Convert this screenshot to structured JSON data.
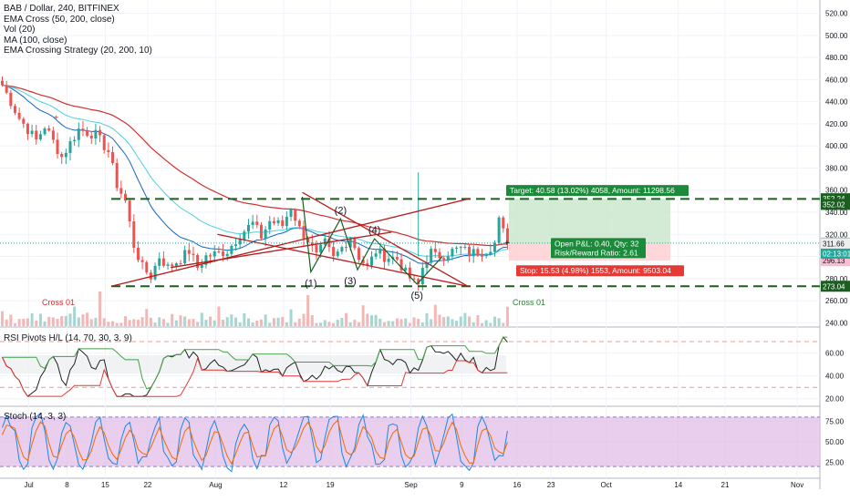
{
  "header": {
    "symbol": "BAB / Dollar, 240, BITFINEX",
    "studies": [
      "EMA Cross (50, 200, close)",
      "Vol (20)",
      "MA (100, close)",
      "EMA Crossing Strategy (20, 200, 10)"
    ]
  },
  "colors": {
    "up": "#26a69a",
    "down": "#ef5350",
    "ema_red": "#d32f2f",
    "ema_blue": "#1565c0",
    "ma_teal": "#4dd0e1",
    "pattern": "#b71c1c",
    "level": "#1b5e20",
    "target_bg": "#c8e6c9",
    "stop_bg": "#ffcdd2",
    "stoch_bg": "#e1bee7",
    "rsi_green": "#43a047",
    "rsi_red": "#e53935"
  },
  "chart_data": [
    {
      "type": "candlestick",
      "pane": "main",
      "ylim": [
        237,
        532
      ],
      "y_ticks": [
        240,
        260,
        280,
        300,
        320,
        340,
        360,
        380,
        400,
        420,
        440,
        460,
        480,
        500,
        520
      ],
      "x_tick_labels": [
        "Jul",
        "8",
        "15",
        "22",
        "Aug",
        "12",
        "19",
        "Sep",
        "9",
        "16",
        "23",
        "Oct",
        "14",
        "21",
        "Nov"
      ],
      "close_path": [
        [
          0,
          455
        ],
        [
          4,
          425
        ],
        [
          8,
          405
        ],
        [
          10,
          418
        ],
        [
          14,
          390
        ],
        [
          18,
          415
        ],
        [
          22,
          410
        ],
        [
          25,
          395
        ],
        [
          27,
          365
        ],
        [
          29,
          350
        ],
        [
          31,
          310
        ],
        [
          33,
          290
        ],
        [
          35,
          282
        ],
        [
          37,
          300
        ],
        [
          39,
          290
        ],
        [
          42,
          298
        ],
        [
          44,
          305
        ],
        [
          46,
          290
        ],
        [
          48,
          300
        ],
        [
          50,
          302
        ],
        [
          53,
          305
        ],
        [
          56,
          320
        ],
        [
          59,
          330
        ],
        [
          61,
          318
        ],
        [
          63,
          332
        ],
        [
          66,
          328
        ],
        [
          68,
          345
        ],
        [
          70,
          325
        ],
        [
          72,
          315
        ],
        [
          74,
          300
        ],
        [
          76,
          312
        ],
        [
          78,
          298
        ],
        [
          80,
          308
        ],
        [
          82,
          318
        ],
        [
          84,
          300
        ],
        [
          86,
          290
        ],
        [
          88,
          305
        ],
        [
          90,
          300
        ],
        [
          93,
          298
        ],
        [
          95,
          285
        ],
        [
          97,
          276
        ],
        [
          98,
          274
        ],
        [
          99,
          290
        ],
        [
          100,
          298
        ],
        [
          101,
          304
        ],
        [
          102,
          300
        ],
        [
          104,
          302
        ],
        [
          106,
          305
        ],
        [
          108,
          307
        ],
        [
          110,
          303
        ],
        [
          112,
          304
        ],
        [
          114,
          306
        ],
        [
          116,
          312
        ],
        [
          117,
          332
        ],
        [
          118,
          322
        ],
        [
          119,
          313
        ]
      ],
      "annotations": [
        "Cross 01",
        "Cross 01",
        "(1)",
        "(2)",
        "(3)",
        "(4)",
        "(5)"
      ],
      "levels": [
        352.02,
        273.04
      ],
      "price_labels": [
        "352.24",
        "352.02",
        "312.06",
        "02:13:01",
        "311.66",
        "296.13",
        "273.04"
      ],
      "position": {
        "entry": 311.66,
        "target": 352.24,
        "stop": 296.13,
        "target_label": "Target: 40.58 (13.02%) 4058, Amount: 11298.56",
        "pnl_label": "Open P&L: 0.40, Qty: 32",
        "rr_label": "Risk/Reward Ratio: 2.61",
        "stop_label": "Stop: 15.53 (4.98%) 1553, Amount: 9503.04"
      }
    },
    {
      "type": "line",
      "pane": "rsi",
      "title": "RSI Pivots H/L (14, 70, 30, 3, 9)",
      "ylim": [
        15,
        82
      ],
      "y_ticks": [
        20,
        40,
        60
      ],
      "bands": [
        70,
        30
      ]
    },
    {
      "type": "line",
      "pane": "stoch",
      "title": "Stoch (14, 3, 3)",
      "ylim": [
        8,
        92
      ],
      "y_ticks": [
        25,
        50,
        75
      ],
      "bands": [
        80,
        20
      ]
    }
  ]
}
